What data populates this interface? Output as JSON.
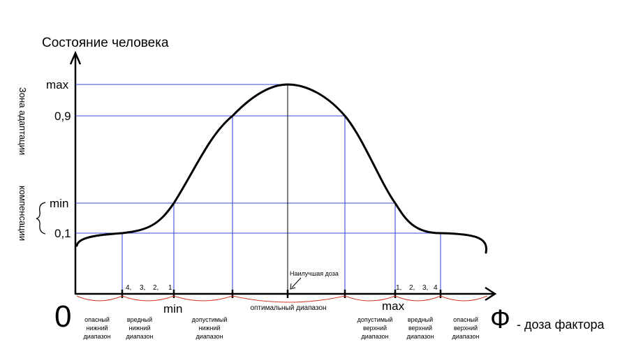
{
  "diagram": {
    "y_axis_title": "Состояние человека",
    "x_axis_caption": "- доза фактора",
    "x_axis_symbol": "Ф",
    "origin_label": "0",
    "side_labels": {
      "adaptation": "Зона адаптации",
      "compensation": "компенсации"
    },
    "y_levels": [
      {
        "key": "max",
        "label": "max"
      },
      {
        "key": "p09",
        "label": "0,9"
      },
      {
        "key": "min",
        "label": "min"
      },
      {
        "key": "p01",
        "label": "0,1"
      }
    ],
    "x_markers": {
      "min": "min",
      "max": "max"
    },
    "left_scale": [
      "4,",
      "3,",
      "2,",
      "1"
    ],
    "right_scale": [
      "1,",
      "2,",
      "3,",
      "4"
    ],
    "best_dose": "Наилучшая доза",
    "ranges": {
      "danger_low": [
        "опасный",
        "нижний",
        "диапазон"
      ],
      "harmful_low": [
        "вредный",
        "нижний",
        "диапазон"
      ],
      "acceptable_low": [
        "допустимый",
        "нижний",
        "диапазон"
      ],
      "optimal": "оптимальный диапазон",
      "acceptable_high": [
        "допустимый",
        "верхний",
        "диапазон"
      ],
      "harmful_high": [
        "вредный",
        "верхний",
        "диапазон"
      ],
      "danger_high": [
        "опасный",
        "верхний",
        "диапазон"
      ]
    },
    "colors": {
      "guide": "#3b4bd6",
      "brace": "#d23a2a",
      "curve": "#000000"
    }
  }
}
